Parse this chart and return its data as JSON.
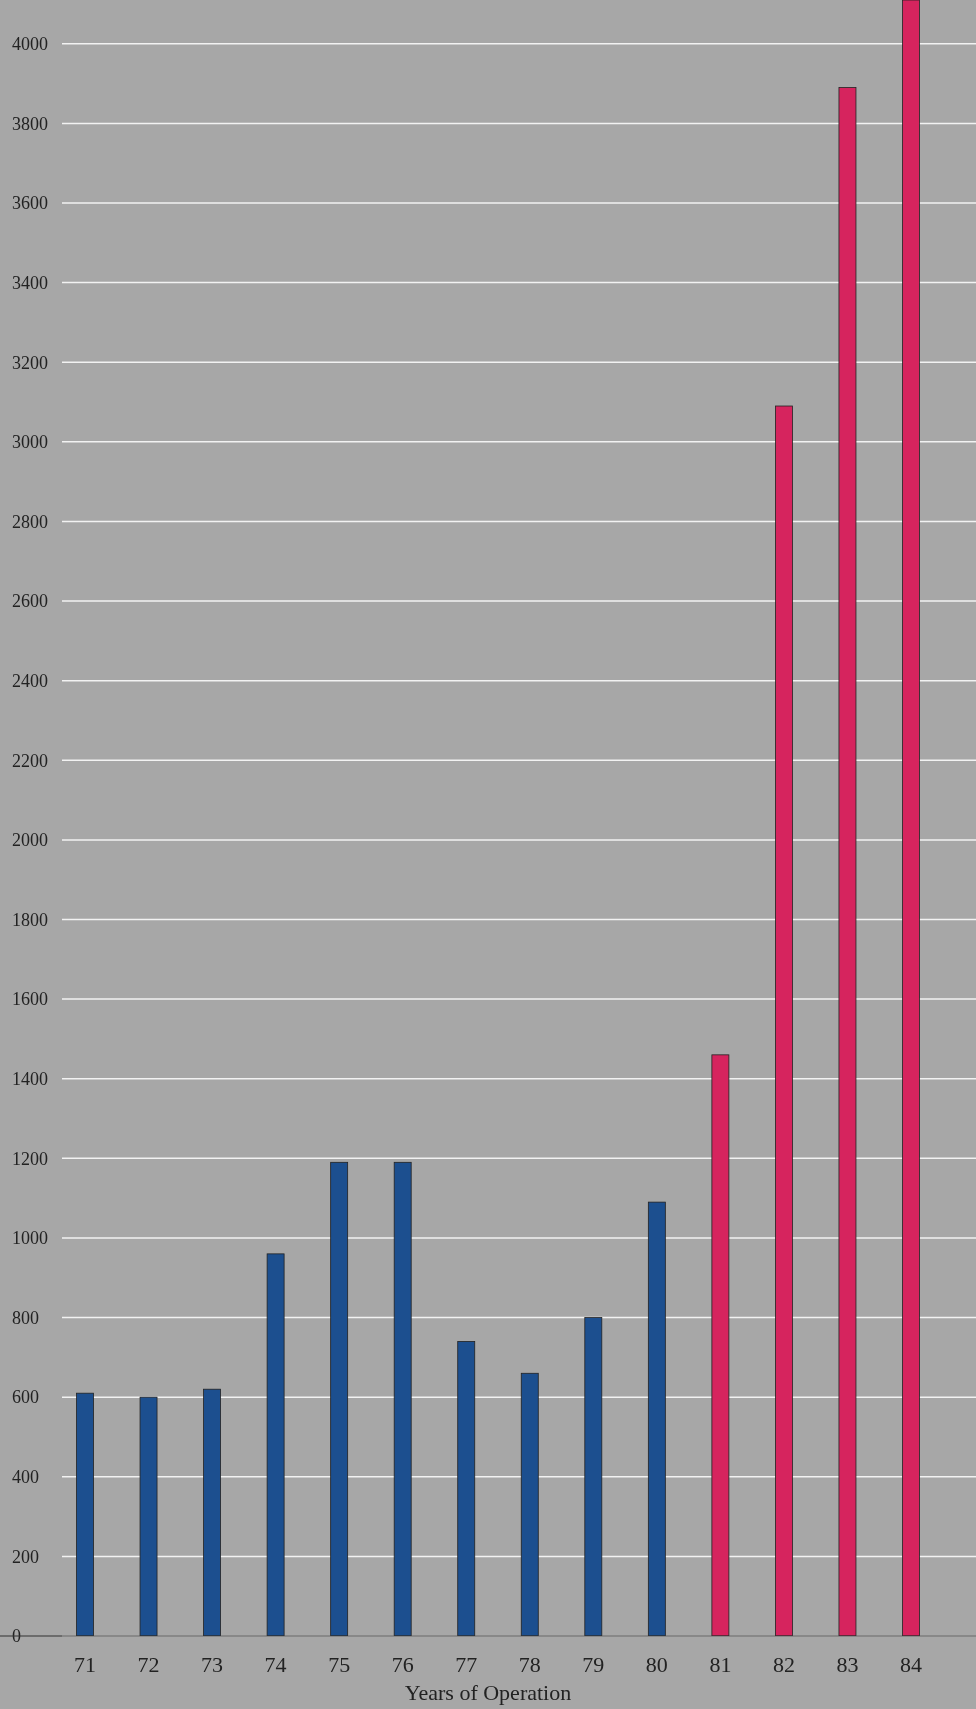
{
  "chart_data": {
    "type": "bar",
    "xlabel": "Years of Operation",
    "categories": [
      "71",
      "72",
      "73",
      "74",
      "75",
      "76",
      "77",
      "78",
      "79",
      "80",
      "81",
      "82",
      "83",
      "84"
    ],
    "values": [
      610,
      600,
      620,
      960,
      1190,
      1190,
      740,
      660,
      800,
      1090,
      1460,
      3090,
      3890,
      4110
    ],
    "colors": [
      "#1c4f8f",
      "#1c4f8f",
      "#1c4f8f",
      "#1c4f8f",
      "#1c4f8f",
      "#1c4f8f",
      "#1c4f8f",
      "#1c4f8f",
      "#1c4f8f",
      "#1c4f8f",
      "#d6245e",
      "#d6245e",
      "#d6245e",
      "#d6245e"
    ],
    "ylim": [
      0,
      4110
    ],
    "yticks": [
      0,
      200,
      400,
      600,
      800,
      1000,
      1200,
      1400,
      1600,
      1800,
      2000,
      2200,
      2400,
      2600,
      2800,
      3000,
      3200,
      3400,
      3600,
      3800,
      4000
    ],
    "grid": "y"
  }
}
